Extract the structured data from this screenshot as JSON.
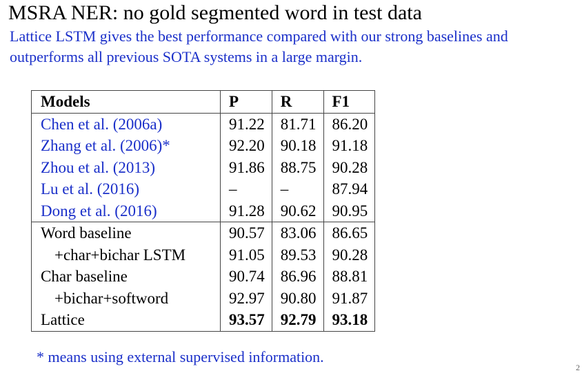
{
  "slide": {
    "title": "MSRA NER: no gold segmented word in test data",
    "subtitle": "Lattice LSTM gives the best performance compared with our strong baselines and outperforms all previous SOTA systems in a large margin.",
    "footnote": "* means using external supervised information.",
    "page_number": "2"
  },
  "colors": {
    "accent_blue": "#1a2fc9",
    "text": "#000000",
    "rule": "#444444"
  },
  "table": {
    "headers": [
      "Models",
      "P",
      "R",
      "F1"
    ],
    "rows": [
      {
        "model": "Chen et al. (2006a)",
        "p": "91.22",
        "r": "81.71",
        "f1": "86.20"
      },
      {
        "model": "Zhang et al. (2006)*",
        "p": "92.20",
        "r": "90.18",
        "f1": "91.18"
      },
      {
        "model": "Zhou et al. (2013)",
        "p": "91.86",
        "r": "88.75",
        "f1": "90.28"
      },
      {
        "model": "Lu et al. (2016)",
        "p": "–",
        "r": "–",
        "f1": "87.94"
      },
      {
        "model": "Dong et al. (2016)",
        "p": "91.28",
        "r": "90.62",
        "f1": "90.95"
      },
      {
        "model": "Word baseline",
        "p": "90.57",
        "r": "83.06",
        "f1": "86.65"
      },
      {
        "model": "+char+bichar LSTM",
        "p": "91.05",
        "r": "89.53",
        "f1": "90.28"
      },
      {
        "model": "Char baseline",
        "p": "90.74",
        "r": "86.96",
        "f1": "88.81"
      },
      {
        "model": "+bichar+softword",
        "p": "92.97",
        "r": "90.80",
        "f1": "91.87"
      },
      {
        "model": "Lattice",
        "p": "93.57",
        "r": "92.79",
        "f1": "93.18"
      }
    ]
  }
}
